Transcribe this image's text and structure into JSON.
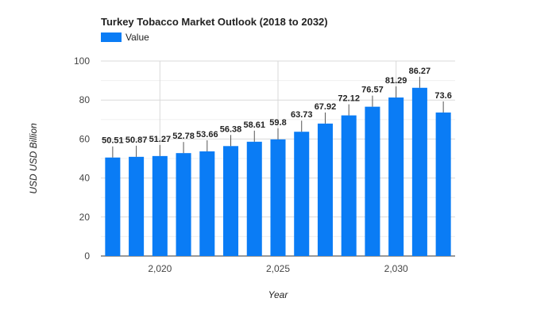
{
  "chart_data": {
    "type": "bar",
    "title": "Turkey Tobacco Market Outlook (2018 to 2032)",
    "xlabel": "Year",
    "ylabel": "USD USD Billion",
    "legend": {
      "position": "top-left",
      "entries": [
        "Value"
      ]
    },
    "ylim": [
      0,
      100
    ],
    "yticks": [
      0,
      20,
      40,
      60,
      80,
      100
    ],
    "xticks": [
      {
        "value": 2020,
        "label": "2,020"
      },
      {
        "value": 2025,
        "label": "2,025"
      },
      {
        "value": 2030,
        "label": "2,030"
      }
    ],
    "grid": true,
    "series": [
      {
        "name": "Value",
        "color": "#0a7cf5",
        "points": [
          {
            "x": 2018,
            "y": 50.51
          },
          {
            "x": 2019,
            "y": 50.87
          },
          {
            "x": 2020,
            "y": 51.27
          },
          {
            "x": 2021,
            "y": 52.78
          },
          {
            "x": 2022,
            "y": 53.66
          },
          {
            "x": 2023,
            "y": 56.38
          },
          {
            "x": 2024,
            "y": 58.61
          },
          {
            "x": 2025,
            "y": 59.8
          },
          {
            "x": 2026,
            "y": 63.73
          },
          {
            "x": 2027,
            "y": 67.92
          },
          {
            "x": 2028,
            "y": 72.12
          },
          {
            "x": 2029,
            "y": 76.57
          },
          {
            "x": 2030,
            "y": 81.29
          },
          {
            "x": 2031,
            "y": 86.27
          },
          {
            "x": 2032,
            "y": 73.6
          }
        ]
      }
    ]
  }
}
